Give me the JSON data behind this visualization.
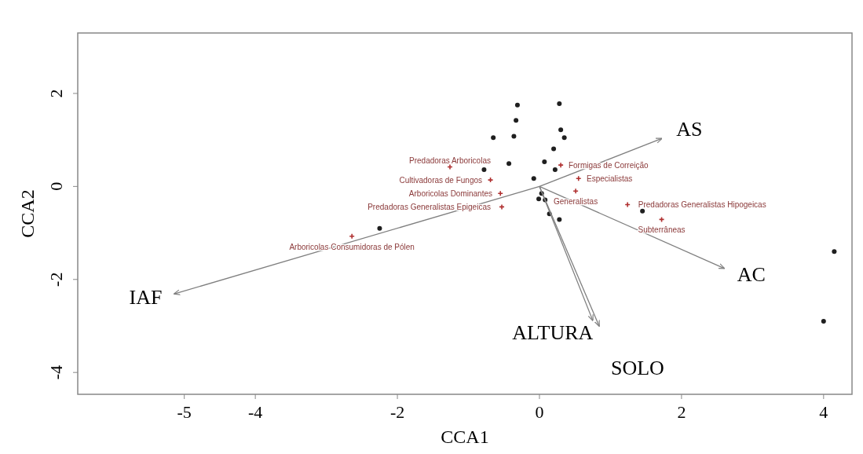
{
  "chart_data": {
    "type": "scatter",
    "xlabel": "CCA1",
    "ylabel": "CCA2",
    "xlim": [
      -6.5,
      4.4
    ],
    "ylim": [
      -4.47,
      3.3
    ],
    "xticks": [
      -5,
      -4,
      -2,
      0,
      2,
      4
    ],
    "yticks": [
      -4,
      -2,
      0,
      2
    ],
    "grid": false,
    "marker": "circle",
    "series": [
      {
        "color": "#1f1f1f",
        "x": [
          -0.31,
          0.28,
          -0.33,
          0.3,
          0.35,
          -0.65,
          -0.36,
          0.2,
          -0.43,
          0.07,
          -0.78,
          0.22,
          -0.08,
          0.03,
          -0.01,
          0.08,
          0.14,
          0.28,
          -2.25,
          1.45,
          4.15,
          4.0
        ],
        "values": [
          1.75,
          1.78,
          1.42,
          1.22,
          1.05,
          1.05,
          1.08,
          0.81,
          0.49,
          0.53,
          0.36,
          0.36,
          0.17,
          -0.15,
          -0.27,
          -0.29,
          -0.59,
          -0.71,
          -0.9,
          -0.53,
          -1.4,
          -2.9
        ]
      },
      {
        "color": "#b03030",
        "marker": "cross",
        "x": [
          -1.26,
          0.3,
          -0.69,
          0.55,
          -0.55,
          0.51,
          -0.53,
          1.24,
          1.72,
          -2.64
        ],
        "values": [
          0.42,
          0.46,
          0.14,
          0.17,
          -0.15,
          -0.1,
          -0.44,
          -0.39,
          -0.71,
          -1.07
        ]
      },
      {
        "type": "line",
        "marker": "none",
        "name": "AS",
        "color": "#7f7f7f",
        "x": [
          0,
          1.72
        ],
        "values": [
          0,
          1.03
        ]
      },
      {
        "type": "line",
        "marker": "none",
        "name": "AC",
        "color": "#7f7f7f",
        "x": [
          0,
          2.6
        ],
        "values": [
          0,
          -1.76
        ]
      },
      {
        "type": "line",
        "marker": "none",
        "name": "IAF",
        "color": "#7f7f7f",
        "x": [
          0,
          -5.14
        ],
        "values": [
          0,
          -2.31
        ]
      },
      {
        "type": "line",
        "marker": "none",
        "name": "ALTURA",
        "color": "#7f7f7f",
        "x": [
          0,
          0.75
        ],
        "values": [
          0,
          -2.88
        ]
      },
      {
        "type": "line",
        "marker": "none",
        "name": "SOLO",
        "color": "#7f7f7f",
        "x": [
          0,
          0.84
        ],
        "values": [
          0,
          -3.0
        ]
      }
    ],
    "annotations": [
      {
        "text": "Predadoras Arboricolas",
        "x": -1.26,
        "y": 0.42
      },
      {
        "text": "Formigas de Correição",
        "x": 0.3,
        "y": 0.46
      },
      {
        "text": "Cultivadoras de Fungos",
        "x": -0.69,
        "y": 0.14
      },
      {
        "text": "Especialistas",
        "x": 0.55,
        "y": 0.17
      },
      {
        "text": "Arboricolas Dominantes",
        "x": -0.55,
        "y": -0.15
      },
      {
        "text": "Generalistas",
        "x": 0.51,
        "y": -0.1
      },
      {
        "text": "Predadoras Generalistas Epigeicas",
        "x": -0.53,
        "y": -0.44
      },
      {
        "text": "Predadoras Generalistas Hipogeicas",
        "x": 1.24,
        "y": -0.39
      },
      {
        "text": "Subterrâneas",
        "x": 1.72,
        "y": -0.71
      },
      {
        "text": "Arboricolas Consumidoras de Pólen",
        "x": -2.64,
        "y": -1.07
      }
    ]
  }
}
